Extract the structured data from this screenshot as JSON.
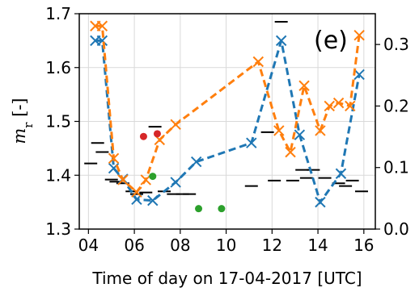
{
  "chart_data": {
    "type": "line",
    "panel_label": "(e)",
    "xlabel": "Time of day on 17-04-2017 [UTC]",
    "ylabel": {
      "prefix": "m",
      "sub": "r",
      "suffix": " [-]"
    },
    "xlim": [
      3.6,
      16.5
    ],
    "ylim_left": [
      1.3,
      1.7
    ],
    "ylim_right": [
      0.0,
      0.35
    ],
    "x_ticks": [
      {
        "value": 4,
        "label": "04"
      },
      {
        "value": 6,
        "label": "06"
      },
      {
        "value": 8,
        "label": "08"
      },
      {
        "value": 10,
        "label": "10"
      },
      {
        "value": 12,
        "label": "12"
      },
      {
        "value": 14,
        "label": "14"
      },
      {
        "value": 16,
        "label": "16"
      }
    ],
    "y_left_ticks": [
      {
        "value": 1.3,
        "label": "1.3"
      },
      {
        "value": 1.4,
        "label": "1.4"
      },
      {
        "value": 1.5,
        "label": "1.5"
      },
      {
        "value": 1.6,
        "label": "1.6"
      },
      {
        "value": 1.7,
        "label": "1.7"
      }
    ],
    "y_right_ticks": [
      {
        "value": 0.0,
        "label": "0.0"
      },
      {
        "value": 0.1,
        "label": "0.1"
      },
      {
        "value": 0.2,
        "label": "0.2"
      },
      {
        "value": 0.3,
        "label": "0.3"
      }
    ],
    "grid": true,
    "colors": {
      "blue": "#1f77b4",
      "orange": "#ff7f0e",
      "red": "#d62728",
      "green": "#2ca02c",
      "black": "#000000"
    },
    "series": [
      {
        "axis": "left",
        "color": "blue",
        "style": "dashed-x",
        "x": [
          4.3,
          4.6,
          5.1,
          5.5,
          6.1,
          6.8,
          7.8,
          8.7,
          11.1,
          12.4,
          13.2,
          14.1,
          15.0,
          15.8
        ],
        "y": [
          1.65,
          1.65,
          1.413,
          1.393,
          1.355,
          1.353,
          1.387,
          1.425,
          1.46,
          1.65,
          1.475,
          1.35,
          1.403,
          1.587
        ]
      },
      {
        "axis": "right",
        "color": "orange",
        "style": "dashed-x",
        "x": [
          4.3,
          4.6,
          5.1,
          5.5,
          6.1,
          6.5,
          7.1,
          7.8,
          11.4,
          12.3,
          12.8,
          13.4,
          14.1,
          14.5,
          14.9,
          15.4,
          15.8
        ],
        "y": [
          0.33,
          0.33,
          0.115,
          0.08,
          0.06,
          0.08,
          0.145,
          0.17,
          0.272,
          0.16,
          0.125,
          0.233,
          0.16,
          0.2,
          0.205,
          0.2,
          0.315
        ]
      }
    ],
    "points_red": {
      "axis": "left",
      "x": [
        6.4,
        7.0
      ],
      "y": [
        1.472,
        1.477
      ]
    },
    "points_green": {
      "axis": "left",
      "x": [
        6.8,
        8.8,
        9.8
      ],
      "y": [
        1.398,
        1.338,
        1.338
      ]
    },
    "black_markers": {
      "axis": "left",
      "x": [
        4.1,
        4.4,
        4.6,
        5.0,
        5.2,
        5.5,
        5.9,
        6.1,
        6.5,
        6.9,
        7.3,
        7.7,
        8.1,
        8.4,
        11.1,
        11.8,
        12.1,
        12.4,
        12.9,
        13.3,
        13.5,
        13.8,
        14.3,
        14.9,
        15.2,
        15.5,
        15.9
      ],
      "y": [
        1.422,
        1.46,
        1.443,
        1.392,
        1.388,
        1.385,
        1.37,
        1.365,
        1.368,
        1.49,
        1.37,
        1.365,
        1.365,
        1.365,
        1.38,
        1.48,
        1.39,
        1.685,
        1.39,
        1.41,
        1.395,
        1.41,
        1.395,
        1.385,
        1.38,
        1.39,
        1.37
      ]
    }
  }
}
